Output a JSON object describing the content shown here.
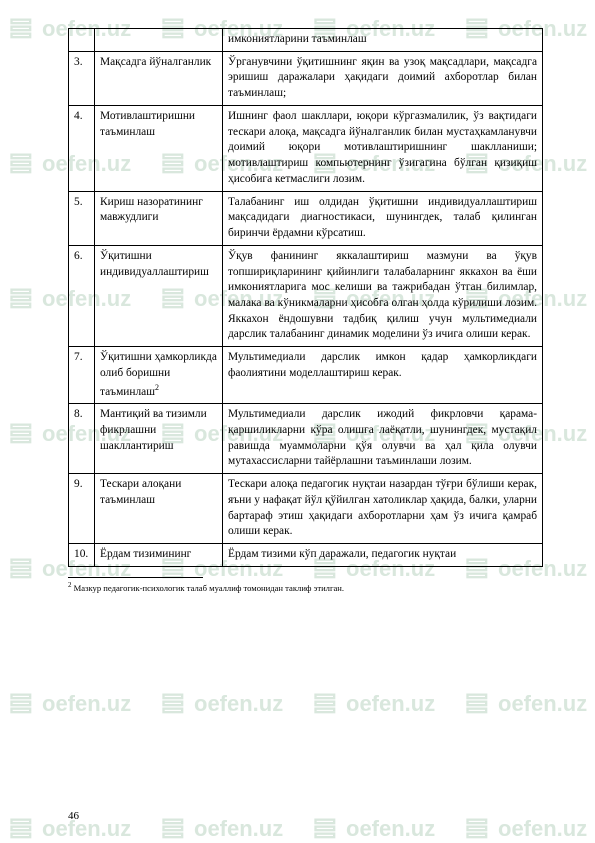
{
  "watermark": {
    "text": "oefen.uz",
    "color": "#d9e7dd"
  },
  "table": {
    "rows": [
      {
        "n": "",
        "label": "",
        "body": "имкониятларини таъминлаш"
      },
      {
        "n": "3.",
        "label": "Мақсадга йўналганлик",
        "body": "Ўрганувчини ўқитишнинг яқин ва узоқ мақсадлари, мақсадга эришиш даражалари ҳақидаги доимий ахборотлар билан таъминлаш;"
      },
      {
        "n": "4.",
        "label": "Мотивлаштиришни таъминлаш",
        "body": "Ишнинг фаол шакллари, юқори кўргазмалилик, ўз вақтидаги тескари алоқа, мақсадга йўналганлик билан мустаҳкамланувчи доимий юқори мотивлаштиришнинг шаклланиши; мотивлаштириш компьютернинг ўзигагина бўлган қизиқиш ҳисобига кетмаслиги лозим."
      },
      {
        "n": "5.",
        "label": "Кириш назоратининг мавжудлиги",
        "body": "Талабанинг иш олдидан ўқитишни индивидуаллаштириш мақсадидаги диагностикаси, шунингдек, талаб қилинган биринчи ёрдамни кўрсатиш."
      },
      {
        "n": "6.",
        "label": "Ўқитишни индивидуаллаштириш",
        "body": "Ўқув фанининг яккалаштириш мазмуни ва ўқув топшириқларининг қийинлиги талабаларнинг яккахон ва ёши имкониятларига мос келиши ва тажрибадан ўтган билимлар, малака ва кўникмаларни ҳисобга олган ҳолда кўрилиши лозим. Яккахон ёндошувни тадбиқ қилиш учун мультимедиали дарслик талабанинг динамик моделини ўз ичига олиши керак."
      },
      {
        "n": "7.",
        "label": "Ўқитишни ҳамкорликда олиб боришни таъминлаш",
        "sup": "2",
        "body": "Мультимедиали дарслик имкон қадар ҳамкорликдаги фаолиятини моделлаштириш керак."
      },
      {
        "n": "8.",
        "label": "Мантиқий ва тизимли фикрлашни шакллантириш",
        "body": "Мультимедиали дарслик ижодий фикрловчи қарама-қаршиликларни кўра олишга лаёқатли, шунингдек, мустақил равишда муаммоларни қўя олувчи ва ҳал қила олувчи мутахассисларни тайёрлашни таъминлаши лозим."
      },
      {
        "n": "9.",
        "label": "Тескари алоқани таъминлаш",
        "body": "Тескари алоқа педагогик нуқтаи назардан тўғри бўлиши керак, яъни у нафақат йўл қўйилган хатоликлар ҳақида, балки, уларни бартараф этиш ҳақидаги ахборотларни ҳам ўз ичига қамраб олиши керак."
      },
      {
        "n": "10.",
        "label": "Ёрдам тизимининг",
        "body": "Ёрдам тизими кўп даражали, педагогик нуқтаи"
      }
    ]
  },
  "footnote": {
    "marker": "2",
    "text": "Мазкур педагогик-психологик талаб муаллиф томонидан таклиф этилган."
  },
  "page_number": "46"
}
